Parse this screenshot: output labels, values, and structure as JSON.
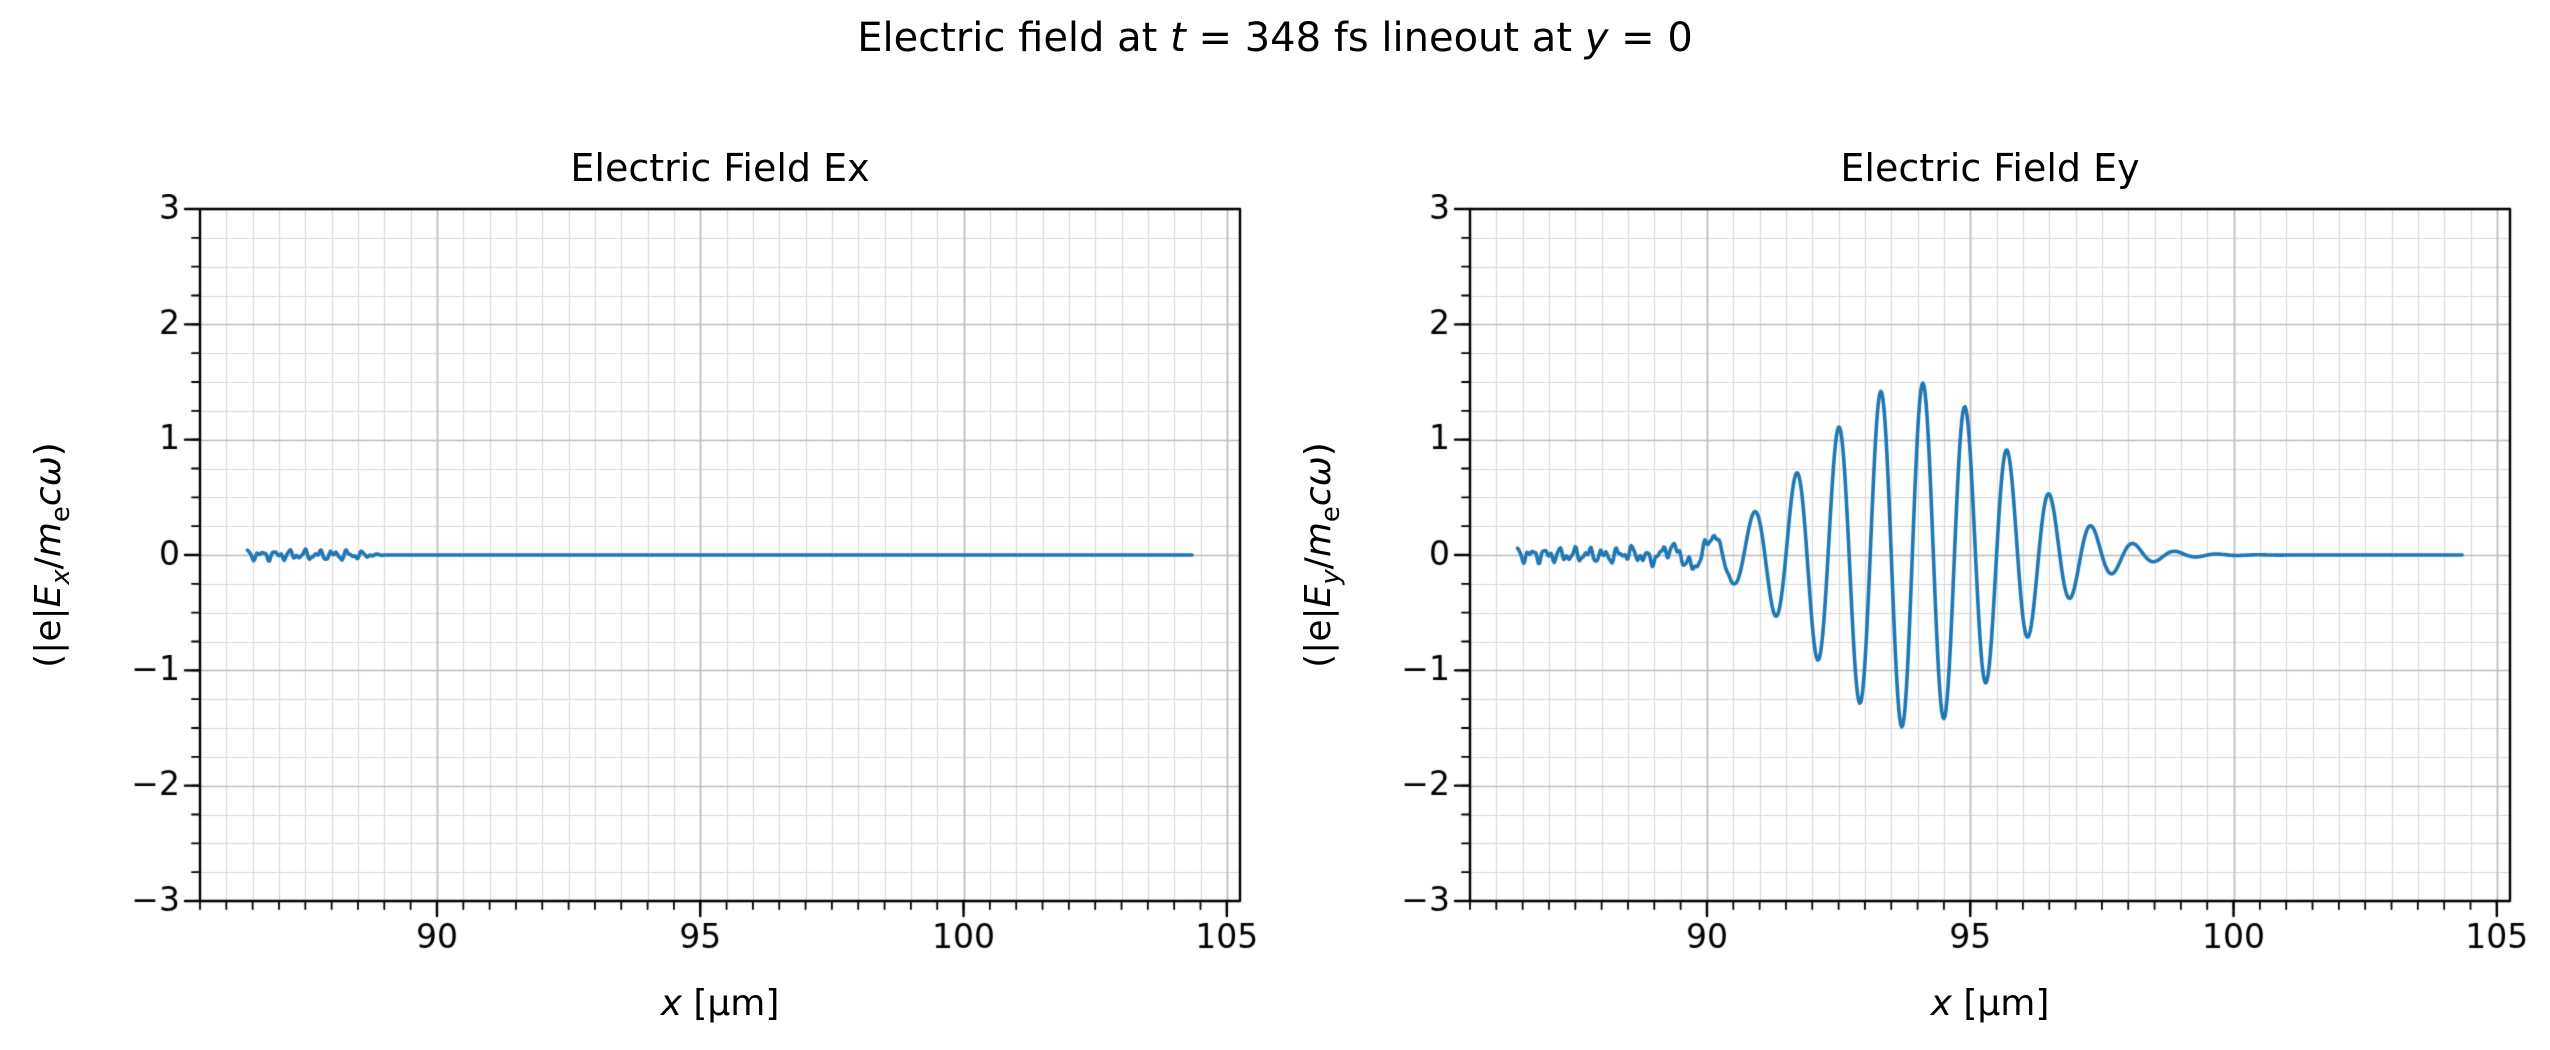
{
  "figure": {
    "title": "Electric field at t = 348 fs lineout at y = 0",
    "title_parts": [
      {
        "t": "Electric field at "
      },
      {
        "t": "t",
        "i": true
      },
      {
        "t": " = 348 fs lineout at "
      },
      {
        "t": "y",
        "i": true
      },
      {
        "t": " = 0"
      }
    ],
    "background_color": "#ffffff"
  },
  "chart_data": [
    {
      "type": "line",
      "title": "Electric Field Ex",
      "xlabel": "x [μm]",
      "xlabel_parts": [
        {
          "t": "x",
          "i": true
        },
        {
          "t": " [μm]"
        }
      ],
      "ylabel": "(|e|E_x/m_ecω)",
      "ylabel_parts": [
        {
          "t": "(|e|"
        },
        {
          "t": "E",
          "i": true
        },
        {
          "t": "x",
          "i": true,
          "sub": true
        },
        {
          "t": "/"
        },
        {
          "t": "m",
          "i": true
        },
        {
          "t": "e",
          "sub": true
        },
        {
          "t": "c",
          "i": true
        },
        {
          "t": "ω",
          "i": true
        },
        {
          "t": ")"
        }
      ],
      "xlim": [
        85.5,
        105.25
      ],
      "ylim": [
        -3,
        3
      ],
      "x_major_ticks": [
        90,
        95,
        100,
        105
      ],
      "x_tick_labels": [
        "90",
        "95",
        "100",
        "105"
      ],
      "y_major_ticks": [
        -3,
        -2,
        -1,
        0,
        1,
        2,
        3
      ],
      "y_tick_labels": [
        "−3",
        "−2",
        "−1",
        "0",
        "1",
        "2",
        "3"
      ],
      "x_minor_step": 0.5,
      "y_minor_step": 0.25,
      "grid": true,
      "line_color": "#1f77b4",
      "major_grid_color": "#bdbdbd",
      "minor_grid_color": "#d9d9d9",
      "spine_color": "#000000",
      "series": {
        "name": "Ex",
        "x_start": 86.4,
        "x_end": 104.35,
        "x_step": 0.02,
        "baseline": 0,
        "noise": {
          "x_end": 89.0,
          "fade": 0.6,
          "amplitude": 0.035
        },
        "packet": null
      }
    },
    {
      "type": "line",
      "title": "Electric Field Ey",
      "xlabel": "x [μm]",
      "xlabel_parts": [
        {
          "t": "x",
          "i": true
        },
        {
          "t": " [μm]"
        }
      ],
      "ylabel": "(|e|E_y/m_ecω)",
      "ylabel_parts": [
        {
          "t": "(|e|"
        },
        {
          "t": "E",
          "i": true
        },
        {
          "t": "y",
          "i": true,
          "sub": true
        },
        {
          "t": "/"
        },
        {
          "t": "m",
          "i": true
        },
        {
          "t": "e",
          "sub": true
        },
        {
          "t": "c",
          "i": true
        },
        {
          "t": "ω",
          "i": true
        },
        {
          "t": ")"
        }
      ],
      "xlim": [
        85.5,
        105.25
      ],
      "ylim": [
        -3,
        3
      ],
      "x_major_ticks": [
        90,
        95,
        100,
        105
      ],
      "x_tick_labels": [
        "90",
        "95",
        "100",
        "105"
      ],
      "y_major_ticks": [
        -3,
        -2,
        -1,
        0,
        1,
        2,
        3
      ],
      "y_tick_labels": [
        "−3",
        "−2",
        "−1",
        "0",
        "1",
        "2",
        "3"
      ],
      "x_minor_step": 0.5,
      "y_minor_step": 0.25,
      "grid": true,
      "line_color": "#1f77b4",
      "major_grid_color": "#bdbdbd",
      "minor_grid_color": "#d9d9d9",
      "spine_color": "#000000",
      "series": {
        "name": "Ey",
        "x_start": 86.4,
        "x_end": 104.35,
        "x_step": 0.02,
        "baseline": 0,
        "noise": {
          "x_end": 90.6,
          "fade": 0.7,
          "amplitude": 0.05
        },
        "packet": {
          "center": 93.9,
          "sigma": 1.8,
          "amplitude": 1.5,
          "wavelength": 0.8
        }
      }
    }
  ]
}
